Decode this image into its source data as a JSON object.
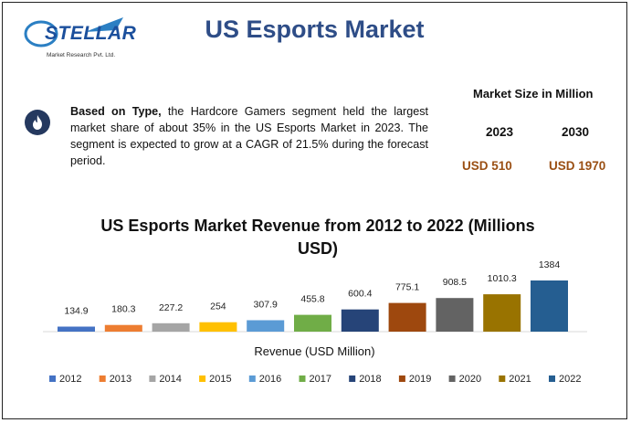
{
  "header": {
    "logo_text": "STELLAR",
    "logo_subtext": "Market Research Pvt. Ltd.",
    "title": "US Esports Market"
  },
  "summary": {
    "bold_lead": "Based on Type,",
    "text": " the Hardcore Gamers segment held the largest market share of about 35% in the US Esports Market in 2023. The segment is expected to grow at a CAGR of 21.5% during the forecast period."
  },
  "market_size": {
    "heading": "Market Size in Million",
    "year_a": "2023",
    "year_b": "2030",
    "value_a": "USD 510",
    "value_b": "USD 1970"
  },
  "chart_data": {
    "type": "bar",
    "title": "US Esports Market Revenue from 2012 to 2022 (Millions USD)",
    "xlabel": "Revenue (USD Million)",
    "ylabel": "",
    "categories": [
      "2012",
      "2013",
      "2014",
      "2015",
      "2016",
      "2017",
      "2018",
      "2019",
      "2020",
      "2021",
      "2022"
    ],
    "values": [
      134.9,
      180.3,
      227.2,
      254,
      307.9,
      455.8,
      600.4,
      775.1,
      908.5,
      1010.3,
      1384
    ],
    "value_labels": [
      "134.9",
      "180.3",
      "227.2",
      "254",
      "307.9",
      "455.8",
      "600.4",
      "775.1",
      "908.5",
      "1010.3",
      "1384"
    ],
    "colors": [
      "#4472c4",
      "#ed7d31",
      "#a5a5a5",
      "#ffc000",
      "#5b9bd5",
      "#70ad47",
      "#264478",
      "#9e480e",
      "#636363",
      "#997300",
      "#255e91"
    ],
    "legend_position": "bottom",
    "grid": false
  }
}
